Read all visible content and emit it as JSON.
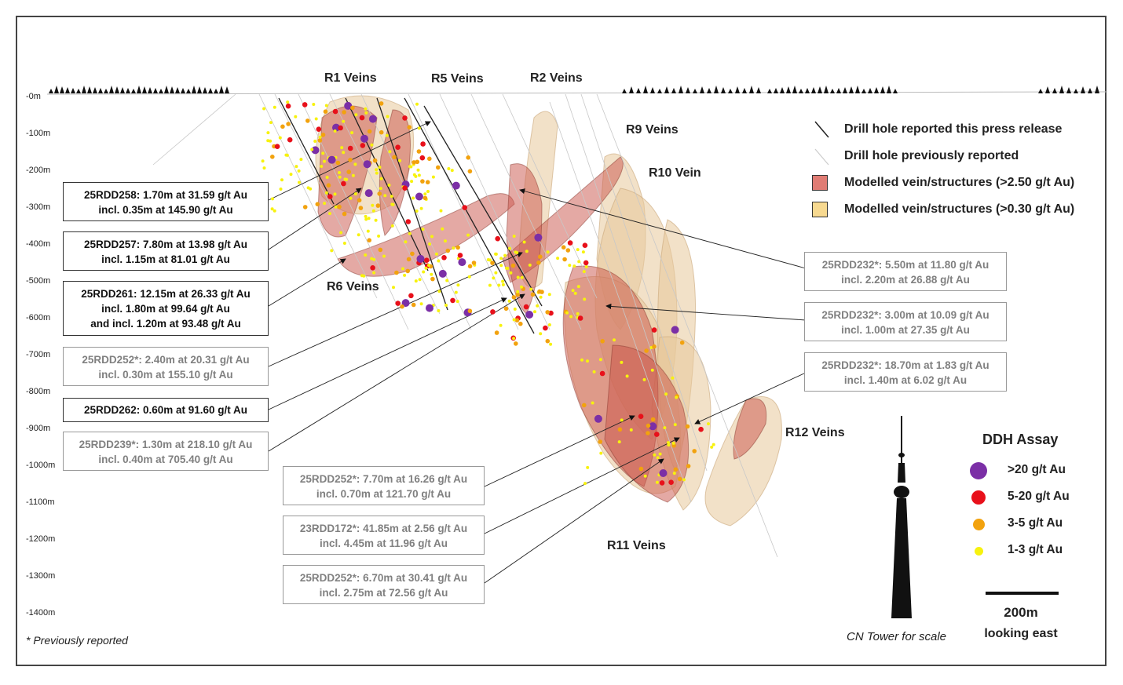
{
  "depth_labels": [
    "-0m",
    "-100m",
    "-200m",
    "-300m",
    "-400m",
    "-500m",
    "-600m",
    "-700m",
    "-800m",
    "-900m",
    "-1000m",
    "-1100m",
    "-1200m",
    "-1300m",
    "-1400m"
  ],
  "vein_labels": {
    "r1": "R1 Veins",
    "r5": "R5 Veins",
    "r2": "R2 Veins",
    "r9": "R9 Veins",
    "r10": "R10 Vein",
    "r6": "R6 Veins",
    "r11": "R11 Veins",
    "r12": "R12 Veins"
  },
  "legend": {
    "drill_current": "Drill hole reported this press release",
    "drill_previous": "Drill hole previously reported",
    "vein_high": "Modelled vein/structures (>2.50 g/t Au)",
    "vein_low": "Modelled vein/structures (>0.30 g/t Au)",
    "color_high": "#e07c74",
    "color_low": "#f7d990"
  },
  "assay": {
    "title": "DDH Assay",
    "classes": [
      {
        "label": ">20 g/t Au",
        "color": "#7b2fa6"
      },
      {
        "label": "5-20 g/t Au",
        "color": "#e8101a"
      },
      {
        "label": "3-5 g/t Au",
        "color": "#f2a20e"
      },
      {
        "label": "1-3 g/t Au",
        "color": "#f7f20e"
      }
    ]
  },
  "callouts": {
    "c258": {
      "line1": "25RDD258: 1.70m at 31.59 g/t Au",
      "line2": "incl. 0.35m at 145.90 g/t Au"
    },
    "c257": {
      "line1": "25RDD257: 7.80m at 13.98 g/t Au",
      "line2": "incl. 1.15m at 81.01 g/t Au"
    },
    "c261": {
      "line1": "25RDD261: 12.15m at 26.33 g/t Au",
      "line2": "incl. 1.80m at 99.64 g/t Au",
      "line3": "and incl. 1.20m at 93.48 g/t Au"
    },
    "c252a": {
      "line1": "25RDD252*: 2.40m at 20.31 g/t Au",
      "line2": "incl. 0.30m at 155.10 g/t Au"
    },
    "c262": {
      "line1": "25RDD262: 0.60m at 91.60 g/t Au"
    },
    "c239": {
      "line1": "25RDD239*: 1.30m at 218.10 g/t Au",
      "line2": "incl. 0.40m at 705.40 g/t Au"
    },
    "c252b": {
      "line1": "25RDD252*: 7.70m at 16.26 g/t Au",
      "line2": "incl. 0.70m at 121.70 g/t Au"
    },
    "c172": {
      "line1": "23RDD172*: 41.85m at 2.56 g/t Au",
      "line2": "incl. 4.45m at 11.96 g/t Au"
    },
    "c252c": {
      "line1": "25RDD252*: 6.70m at 30.41 g/t Au",
      "line2": "incl. 2.75m at 72.56 g/t Au"
    },
    "c232a": {
      "line1": "25RDD232*: 5.50m at 11.80 g/t Au",
      "line2": "incl. 2.20m at 26.88 g/t Au"
    },
    "c232b": {
      "line1": "25RDD232*: 3.00m at 10.09 g/t Au",
      "line2": "incl. 1.00m at 27.35 g/t Au"
    },
    "c232c": {
      "line1": "25RDD232*: 18.70m at 1.83 g/t Au",
      "line2": "incl. 1.40m at 6.02 g/t Au"
    }
  },
  "notes": {
    "previously": "* Previously reported",
    "cn_tower": "CN Tower for scale",
    "scale_value": "200m",
    "view": "looking east"
  }
}
